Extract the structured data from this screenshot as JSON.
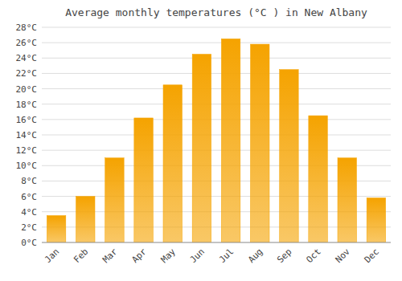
{
  "chart_data": {
    "type": "bar",
    "title": "Average monthly temperatures (°C ) in New Albany",
    "categories": [
      "Jan",
      "Feb",
      "Mar",
      "Apr",
      "May",
      "Jun",
      "Jul",
      "Aug",
      "Sep",
      "Oct",
      "Nov",
      "Dec"
    ],
    "values": [
      3.5,
      6.0,
      11.0,
      16.2,
      20.5,
      24.5,
      26.5,
      25.8,
      22.5,
      16.5,
      11.0,
      5.8
    ],
    "color": "#F5A300",
    "ylim": [
      0,
      28
    ],
    "yticks": [
      {
        "value": 0,
        "label": "0°C"
      },
      {
        "value": 2,
        "label": "2°C"
      },
      {
        "value": 4,
        "label": "4°C"
      },
      {
        "value": 6,
        "label": "6°C"
      },
      {
        "value": 8,
        "label": "8°C"
      },
      {
        "value": 10,
        "label": "10°C"
      },
      {
        "value": 12,
        "label": "12°C"
      },
      {
        "value": 14,
        "label": "14°C"
      },
      {
        "value": 16,
        "label": "16°C"
      },
      {
        "value": 18,
        "label": "18°C"
      },
      {
        "value": 20,
        "label": "20°C"
      },
      {
        "value": 22,
        "label": "22°C"
      },
      {
        "value": 24,
        "label": "24°C"
      },
      {
        "value": 26,
        "label": "26°C"
      },
      {
        "value": 28,
        "label": "28°C"
      }
    ],
    "grid": true
  }
}
